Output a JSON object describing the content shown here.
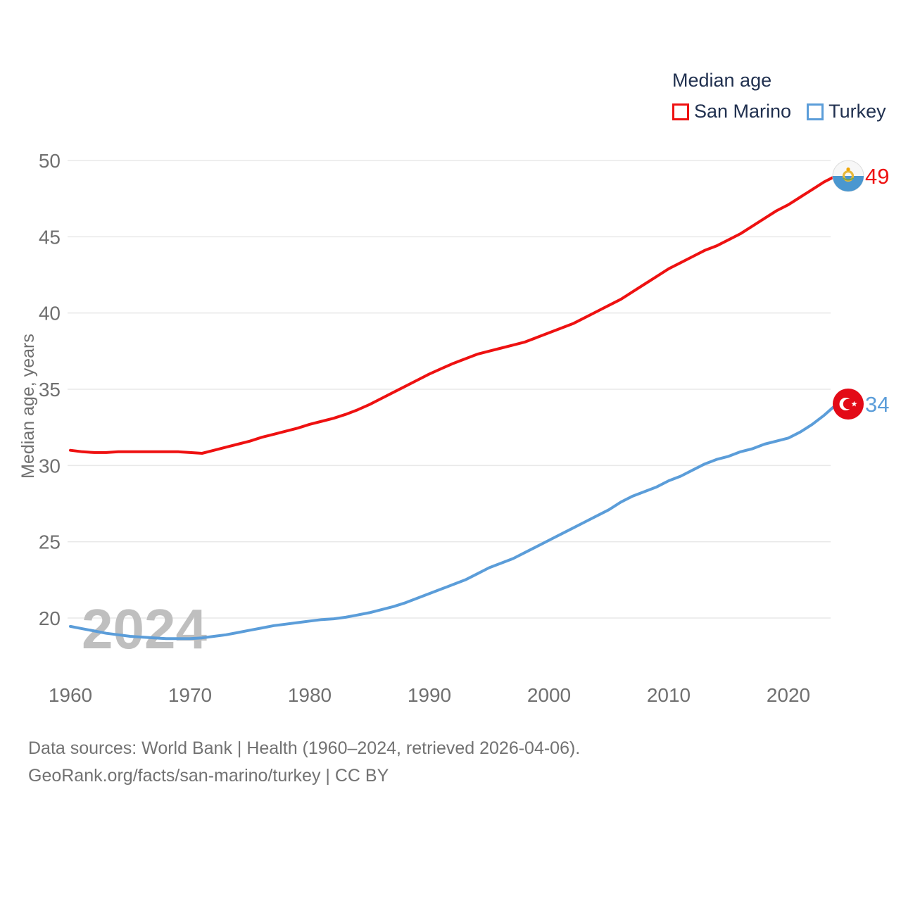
{
  "legend": {
    "title": "Median age",
    "items": [
      {
        "label": "San Marino",
        "color": "#ee1111"
      },
      {
        "label": "Turkey",
        "color": "#5b9dd9"
      }
    ]
  },
  "y_axis": {
    "title": "Median age, years",
    "tick_labels": [
      "50",
      "45",
      "40",
      "35",
      "30",
      "25",
      "20"
    ],
    "tick_values": [
      50,
      45,
      40,
      35,
      30,
      25,
      20
    ]
  },
  "x_axis": {
    "tick_labels": [
      "1960",
      "1970",
      "1980",
      "1990",
      "2000",
      "2010",
      "2020"
    ],
    "tick_values": [
      1960,
      1970,
      1980,
      1990,
      2000,
      2010,
      2020
    ]
  },
  "watermark": "2024",
  "end_labels": {
    "san_marino": "49",
    "turkey": "34"
  },
  "footer": {
    "line1": "Data sources: World Bank | Health (1960–2024, retrieved 2026-04-06).",
    "line2": "GeoRank.org/facts/san-marino/turkey | CC BY"
  },
  "colors": {
    "san_marino_line": "#ee1111",
    "turkey_line": "#5b9dd9",
    "legend_text": "#20304f",
    "axis_text": "#707070",
    "gridline": "#e8e8e8",
    "watermark": "#bfbfbf",
    "turkey_flag_red": "#e30a17",
    "san_marino_flag_blue": "#4a97d0"
  },
  "chart_data": {
    "type": "line",
    "title": "Median age",
    "xlabel": "",
    "ylabel": "Median age, years",
    "xlim": [
      1960,
      2024
    ],
    "ylim": [
      18,
      50
    ],
    "grid": "horizontal",
    "legend_position": "top-right",
    "x": [
      1960,
      1961,
      1962,
      1963,
      1964,
      1965,
      1966,
      1967,
      1968,
      1969,
      1970,
      1971,
      1972,
      1973,
      1974,
      1975,
      1976,
      1977,
      1978,
      1979,
      1980,
      1981,
      1982,
      1983,
      1984,
      1985,
      1986,
      1987,
      1988,
      1989,
      1990,
      1991,
      1992,
      1993,
      1994,
      1995,
      1996,
      1997,
      1998,
      1999,
      2000,
      2001,
      2002,
      2003,
      2004,
      2005,
      2006,
      2007,
      2008,
      2009,
      2010,
      2011,
      2012,
      2013,
      2014,
      2015,
      2016,
      2017,
      2018,
      2019,
      2020,
      2021,
      2022,
      2023,
      2024
    ],
    "series": [
      {
        "name": "Turkey",
        "color": "#5b9dd9",
        "end_label": "34",
        "values": [
          19.45,
          19.3,
          19.15,
          19.0,
          18.9,
          18.8,
          18.75,
          18.7,
          18.65,
          18.65,
          18.65,
          18.7,
          18.8,
          18.9,
          19.05,
          19.2,
          19.35,
          19.5,
          19.6,
          19.7,
          19.8,
          19.9,
          19.95,
          20.05,
          20.2,
          20.35,
          20.55,
          20.75,
          21.0,
          21.3,
          21.6,
          21.9,
          22.2,
          22.5,
          22.9,
          23.3,
          23.6,
          23.9,
          24.3,
          24.7,
          25.1,
          25.5,
          25.9,
          26.3,
          26.7,
          27.1,
          27.6,
          28.0,
          28.3,
          28.6,
          29.0,
          29.3,
          29.7,
          30.1,
          30.4,
          30.6,
          30.9,
          31.1,
          31.4,
          31.6,
          31.8,
          32.2,
          32.7,
          33.3,
          34.0
        ]
      },
      {
        "name": "San Marino",
        "color": "#ee1111",
        "end_label": "49",
        "values": [
          31.0,
          30.9,
          30.85,
          30.85,
          30.9,
          30.9,
          30.9,
          30.9,
          30.9,
          30.9,
          30.85,
          30.8,
          31.0,
          31.2,
          31.4,
          31.6,
          31.85,
          32.05,
          32.25,
          32.45,
          32.7,
          32.9,
          33.1,
          33.35,
          33.65,
          34.0,
          34.4,
          34.8,
          35.2,
          35.6,
          36.0,
          36.35,
          36.7,
          37.0,
          37.3,
          37.5,
          37.7,
          37.9,
          38.1,
          38.4,
          38.7,
          39.0,
          39.3,
          39.7,
          40.1,
          40.5,
          40.9,
          41.4,
          41.9,
          42.4,
          42.9,
          43.3,
          43.7,
          44.1,
          44.4,
          44.8,
          45.2,
          45.7,
          46.2,
          46.7,
          47.1,
          47.6,
          48.1,
          48.6,
          49.0
        ]
      }
    ]
  }
}
